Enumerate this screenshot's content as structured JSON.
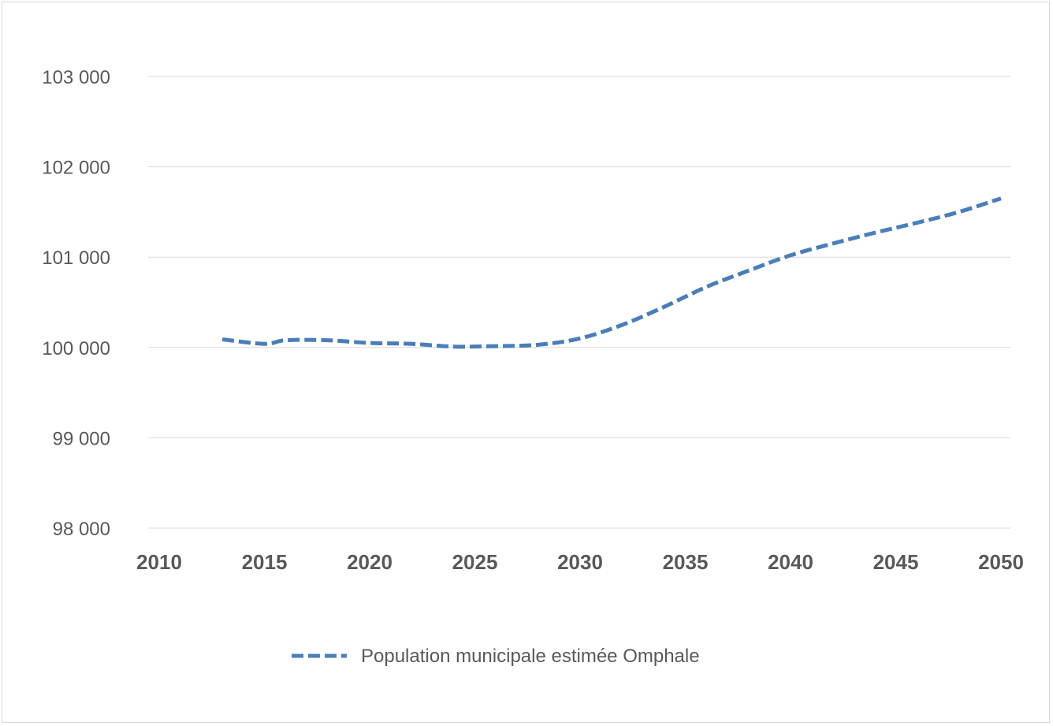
{
  "chart_data": {
    "type": "line",
    "title": "",
    "xlabel": "",
    "ylabel": "",
    "xlim": [
      2010,
      2050
    ],
    "ylim": [
      98000,
      103000
    ],
    "x_ticks": [
      2010,
      2015,
      2020,
      2025,
      2030,
      2035,
      2040,
      2045,
      2050
    ],
    "x_tick_labels": [
      "2010",
      "2015",
      "2020",
      "2025",
      "2030",
      "2035",
      "2040",
      "2045",
      "2050"
    ],
    "y_ticks": [
      98000,
      99000,
      100000,
      101000,
      102000,
      103000
    ],
    "y_tick_labels": [
      "98 000",
      "99 000",
      "100 000",
      "101 000",
      "102 000",
      "103 000"
    ],
    "grid": "horizontal",
    "legend_position": "bottom",
    "series": [
      {
        "name": "Population municipale estimée Omphale",
        "color": "#4a7ebb",
        "line_style": "dashed",
        "x": [
          2013,
          2015,
          2016,
          2018,
          2020,
          2022,
          2024,
          2026,
          2028,
          2030,
          2032,
          2034,
          2036,
          2038,
          2040,
          2042,
          2044,
          2046,
          2048,
          2050
        ],
        "y": [
          100090,
          100040,
          100080,
          100080,
          100050,
          100040,
          100010,
          100015,
          100030,
          100100,
          100250,
          100450,
          100670,
          100850,
          101020,
          101150,
          101270,
          101380,
          101500,
          101650
        ]
      }
    ]
  }
}
